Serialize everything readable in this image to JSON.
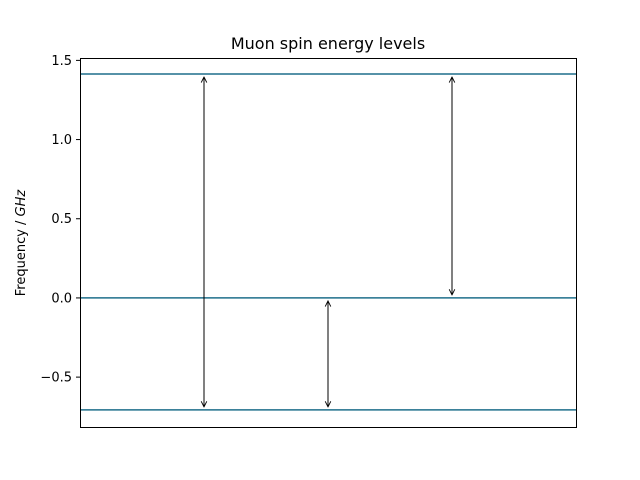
{
  "chart_data": {
    "type": "line",
    "title": "Muon spin energy levels",
    "ylabel_text": "Frequency / ",
    "ylabel_unit": "GHz",
    "xlabel": "",
    "ylim": [
      -0.815,
      1.515
    ],
    "xlim": [
      0,
      4
    ],
    "yticks": [
      {
        "value": 1.5,
        "label": "1.5"
      },
      {
        "value": 1.0,
        "label": "1.0"
      },
      {
        "value": 0.5,
        "label": "0.5"
      },
      {
        "value": 0.0,
        "label": "0.0"
      },
      {
        "value": -0.5,
        "label": "−0.5"
      }
    ],
    "levels": [
      1.414,
      0.0,
      -0.707
    ],
    "transitions": [
      {
        "x": 1,
        "from": -0.707,
        "to": 1.414
      },
      {
        "x": 2,
        "from": -0.707,
        "to": 0.0
      },
      {
        "x": 3,
        "from": 0.0,
        "to": 1.414
      }
    ],
    "level_color": "#1f6f8b",
    "arrow_color": "#000000",
    "grid": false
  }
}
